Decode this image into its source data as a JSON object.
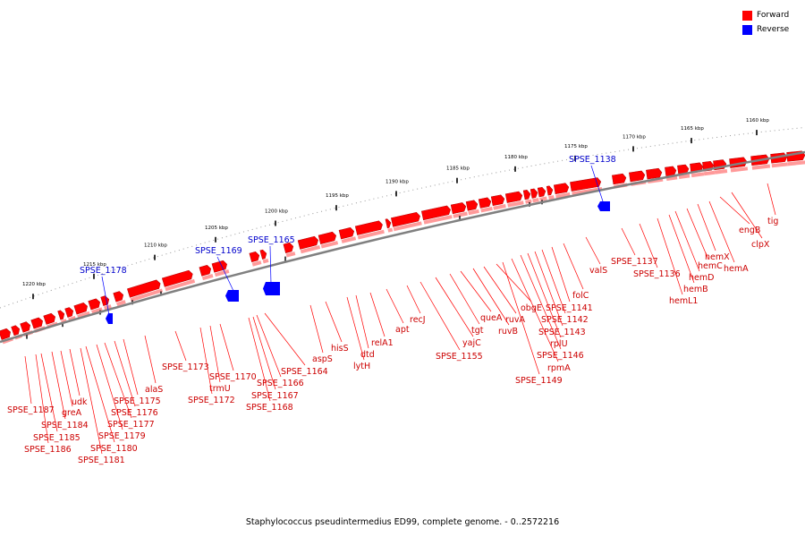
{
  "caption": "Staphylococcus pseudintermedius ED99, complete genome. - 0..2572216",
  "legend": [
    {
      "label": "Forward",
      "color": "#ff0000"
    },
    {
      "label": "Reverse",
      "color": "#0000ff"
    }
  ],
  "colors": {
    "forward": "#ff0000",
    "forward_label": "#cc0000",
    "reverse": "#0000ff",
    "reverse_label": "#0000cc",
    "backbone": "#808080",
    "tick": "#000000"
  },
  "ticks": [
    "1160 kbp",
    "1165 kbp",
    "1170 kbp",
    "1175 kbp",
    "1180 kbp",
    "1185 kbp",
    "1190 kbp",
    "1195 kbp",
    "1200 kbp",
    "1205 kbp",
    "1210 kbp",
    "1215 kbp",
    "1220 kbp"
  ],
  "forward_genes": [
    "tig",
    "clpX",
    "engB",
    "hemA",
    "hemX",
    "hemC",
    "hemD",
    "hemB",
    "hemL1",
    "SPSE_1136",
    "SPSE_1137",
    "valS",
    "folC",
    "SPSE_1141",
    "SPSE_1142",
    "SPSE_1143",
    "rplU",
    "SPSE_1146",
    "rpmA",
    "SPSE_1149",
    "obgE",
    "ruvA",
    "ruvB",
    "queA",
    "tgt",
    "yajC",
    "SPSE_1155",
    "recJ",
    "apt",
    "relA1",
    "dtd",
    "lytH",
    "hisS",
    "aspS",
    "SPSE_1164",
    "SPSE_1166",
    "SPSE_1167",
    "SPSE_1168",
    "SPSE_1170",
    "trmU",
    "SPSE_1172",
    "SPSE_1173",
    "alaS",
    "SPSE_1175",
    "SPSE_1176",
    "SPSE_1177",
    "SPSE_1179",
    "SPSE_1180",
    "SPSE_1181",
    "udk",
    "greA",
    "SPSE_1184",
    "SPSE_1185",
    "SPSE_1186",
    "SPSE_1187"
  ],
  "reverse_genes": [
    "SPSE_1138",
    "SPSE_1165",
    "SPSE_1169",
    "SPSE_1178"
  ]
}
